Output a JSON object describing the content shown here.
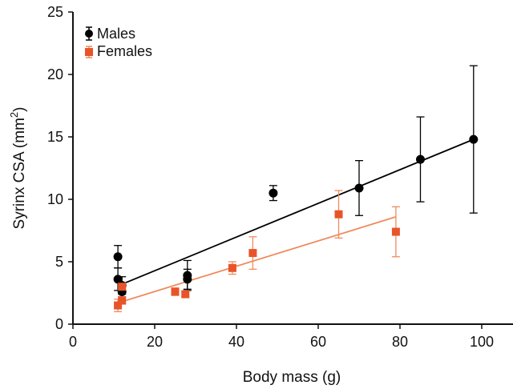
{
  "chart_data": {
    "type": "scatter",
    "title": "",
    "xlabel": "Body mass (g)",
    "ylabel_main": "Syrinx CSA (mm",
    "ylabel_sup": "2",
    "ylabel_end": ")",
    "xlim": [
      0,
      105
    ],
    "ylim": [
      0,
      25
    ],
    "xticks": [
      0,
      20,
      40,
      60,
      80,
      100
    ],
    "yticks": [
      0,
      5,
      10,
      15,
      20,
      25
    ],
    "xtick_labels": [
      "0",
      "20",
      "40",
      "60",
      "80",
      "100"
    ],
    "ytick_labels": [
      "0",
      "5",
      "10",
      "15",
      "20",
      "25"
    ],
    "grid": false,
    "legend_position": "top-left",
    "series": [
      {
        "name": "Males",
        "marker": "circle",
        "color": "#000000",
        "line_color": "#000000",
        "points": [
          {
            "x": 11,
            "y": 5.4,
            "err": 0.9
          },
          {
            "x": 11,
            "y": 3.6,
            "err": 0.9
          },
          {
            "x": 12,
            "y": 3.1,
            "err": 0.7
          },
          {
            "x": 12,
            "y": 2.6,
            "err": 0.4
          },
          {
            "x": 28,
            "y": 3.9,
            "err": 1.2
          },
          {
            "x": 28,
            "y": 3.6,
            "err": 0.8
          },
          {
            "x": 49,
            "y": 10.5,
            "err": 0.6
          },
          {
            "x": 70,
            "y": 10.9,
            "err": 2.2
          },
          {
            "x": 85,
            "y": 13.2,
            "err": 3.4
          },
          {
            "x": 98,
            "y": 14.8,
            "err": 5.9
          }
        ],
        "fit": {
          "x": [
            12,
            98
          ],
          "y": [
            3.2,
            14.8
          ]
        }
      },
      {
        "name": "Females",
        "marker": "square",
        "color": "#e8542a",
        "line_color": "#f08a5d",
        "points": [
          {
            "x": 11,
            "y": 1.5,
            "err": 0.5
          },
          {
            "x": 12,
            "y": 1.9,
            "err": 0.3
          },
          {
            "x": 12,
            "y": 3.0,
            "err": 0.3
          },
          {
            "x": 25,
            "y": 2.6,
            "err": 0.3
          },
          {
            "x": 27.5,
            "y": 2.4,
            "err": 0.2
          },
          {
            "x": 39,
            "y": 4.5,
            "err": 0.5
          },
          {
            "x": 44,
            "y": 5.7,
            "err": 1.3
          },
          {
            "x": 65,
            "y": 8.8,
            "err": 1.9
          },
          {
            "x": 79,
            "y": 7.4,
            "err": 2.0
          }
        ],
        "fit": {
          "x": [
            11,
            79
          ],
          "y": [
            1.7,
            8.6
          ]
        }
      }
    ]
  }
}
